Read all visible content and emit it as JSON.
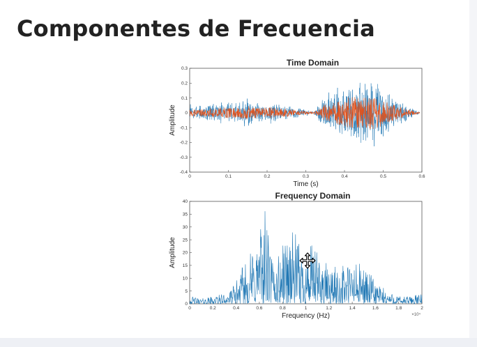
{
  "slide": {
    "title": "Componentes de Frecuencia"
  },
  "colors": {
    "time_signal": "#1f77b4",
    "time_overlay": "#e0531e",
    "freq_signal": "#1f77b4",
    "axis": "#333333"
  },
  "cursor": {
    "icon": "move-cursor-icon"
  },
  "chart_data": [
    {
      "type": "line",
      "title": "Time Domain",
      "xlabel": "Time (s)",
      "ylabel": "Amplitude",
      "xlim": [
        0,
        0.6
      ],
      "ylim": [
        -0.4,
        0.3
      ],
      "x_ticks": [
        "0",
        "0.1",
        "0.2",
        "0.3",
        "0.4",
        "0.5",
        "0.6"
      ],
      "y_ticks": [
        "0.3",
        "0.2",
        "0.1",
        "0",
        "-0.1",
        "-0.2",
        "-0.3",
        "-0.4"
      ],
      "grid": false,
      "series": [
        {
          "x": [
            0,
            0.03,
            0.06,
            0.09,
            0.12,
            0.15,
            0.18,
            0.21,
            0.24,
            0.27,
            0.3,
            0.32,
            0.35,
            0.38,
            0.41,
            0.44,
            0.47,
            0.5,
            0.53,
            0.56,
            0.59
          ],
          "envelope": [
            0.05,
            0.04,
            0.06,
            0.07,
            0.06,
            0.09,
            0.06,
            0.07,
            0.05,
            0.04,
            0.02,
            0.01,
            0.11,
            0.14,
            0.19,
            0.2,
            0.21,
            0.16,
            0.09,
            0.05,
            0.01
          ]
        }
      ]
    },
    {
      "type": "line",
      "title": "Frequency Domain",
      "xlabel": "Frequency (Hz)",
      "ylabel": "Amplitude",
      "x_multiplier": "×10⁴",
      "xlim": [
        0,
        2
      ],
      "ylim": [
        0,
        40
      ],
      "x_ticks": [
        "0",
        "0.2",
        "0.4",
        "0.6",
        "0.8",
        "1",
        "1.2",
        "1.4",
        "1.6",
        "1.8",
        "2"
      ],
      "y_ticks": [
        "40",
        "35",
        "30",
        "25",
        "20",
        "15",
        "10",
        "5",
        "0"
      ],
      "grid": false,
      "series": [
        {
          "x": [
            0,
            0.1,
            0.2,
            0.3,
            0.35,
            0.4,
            0.45,
            0.5,
            0.55,
            0.6,
            0.65,
            0.7,
            0.75,
            0.8,
            0.85,
            0.9,
            0.95,
            1.0,
            1.05,
            1.1,
            1.15,
            1.2,
            1.3,
            1.4,
            1.5,
            1.6,
            1.7,
            1.8,
            1.9,
            2.0
          ],
          "y": [
            3,
            2,
            3,
            4,
            5,
            9,
            14,
            19,
            22,
            29,
            38,
            20,
            17,
            24,
            28,
            29,
            22,
            21,
            23,
            20,
            18,
            14,
            15,
            17,
            15,
            9,
            5,
            3,
            3,
            4
          ]
        }
      ]
    }
  ]
}
